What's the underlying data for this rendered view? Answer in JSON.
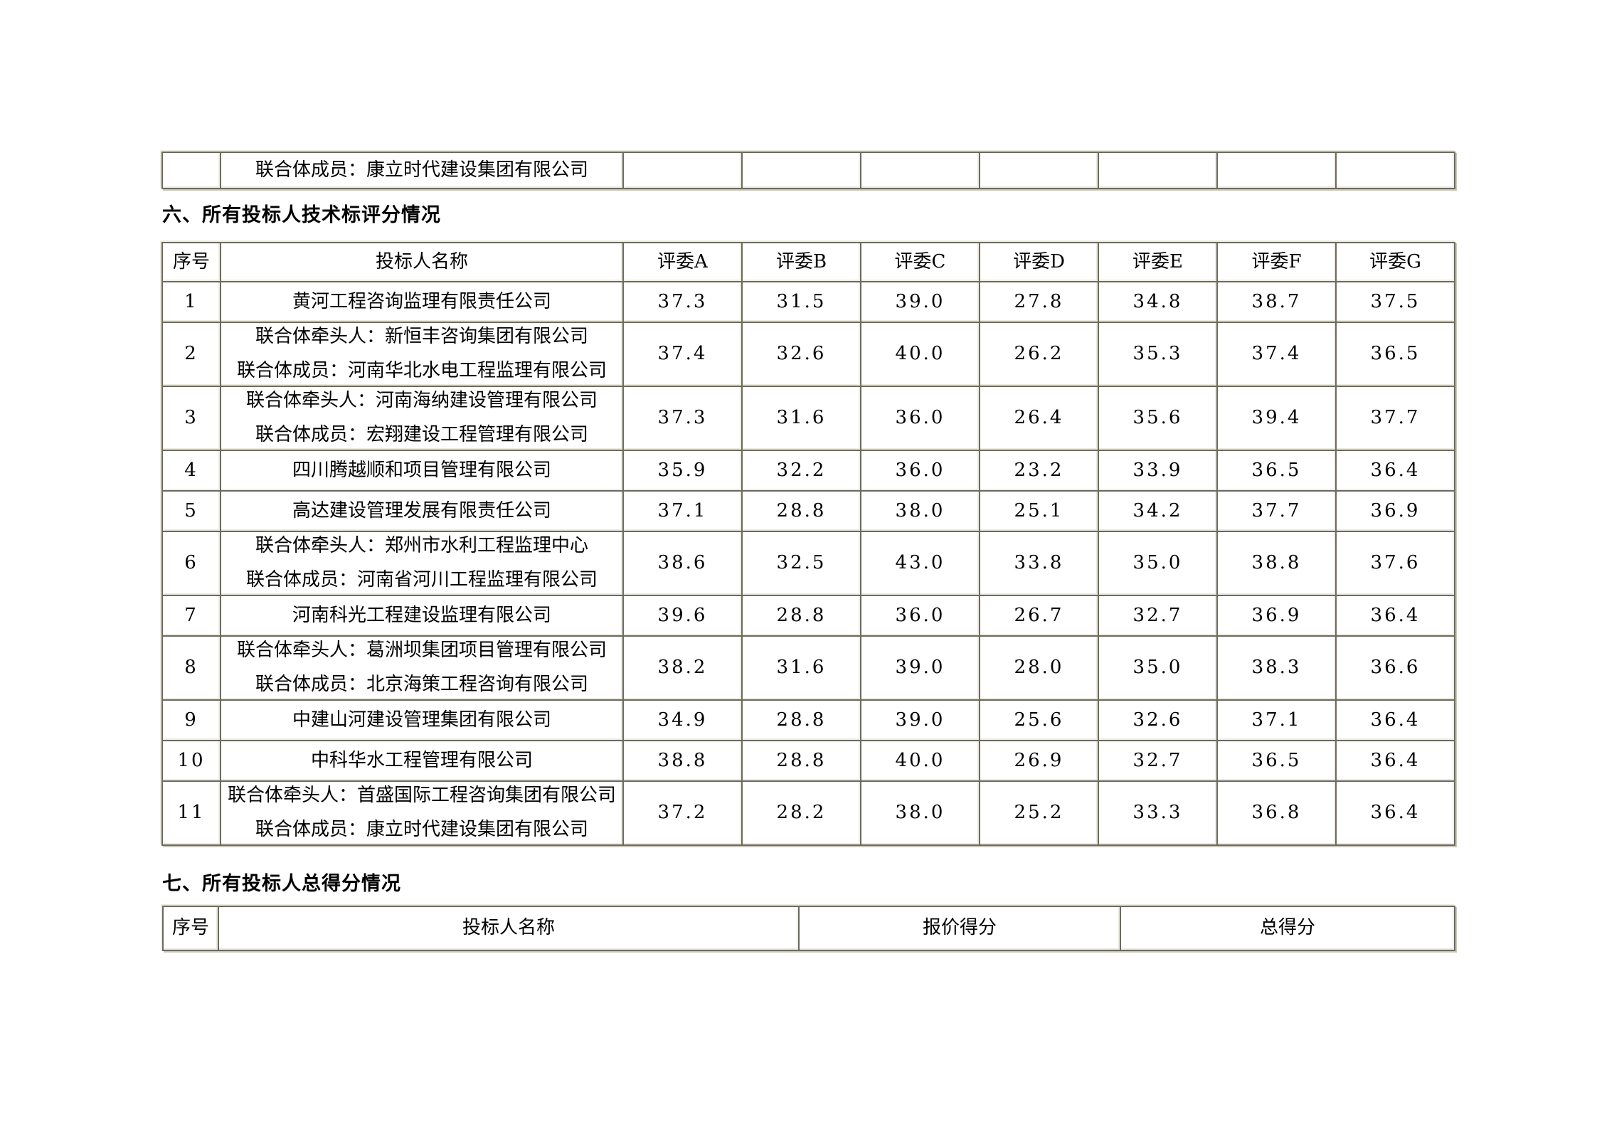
{
  "colors": {
    "background": "#ffffff",
    "text": "#000000",
    "table_border": "#6b6a61",
    "table_border_highlight": "#edecdf"
  },
  "document": {
    "fragment_table": {
      "member_text": "联合体成员：康立时代建设集团有限公司"
    },
    "section_tech": {
      "heading": "六、所有投标人技术标评分情况",
      "table": {
        "headers": [
          "序号",
          "投标人名称",
          "评委A",
          "评委B",
          "评委C",
          "评委D",
          "评委E",
          "评委F",
          "评委G"
        ],
        "rows": [
          {
            "no": "1",
            "name_lines": [
              "黄河工程咨询监理有限责任公司"
            ],
            "scores": [
              "37.3",
              "31.5",
              "39.0",
              "27.8",
              "34.8",
              "38.7",
              "37.5"
            ]
          },
          {
            "no": "2",
            "name_lines": [
              "联合体牵头人：新恒丰咨询集团有限公司",
              "联合体成员：河南华北水电工程监理有限公司"
            ],
            "scores": [
              "37.4",
              "32.6",
              "40.0",
              "26.2",
              "35.3",
              "37.4",
              "36.5"
            ]
          },
          {
            "no": "3",
            "name_lines": [
              "联合体牵头人：河南海纳建设管理有限公司",
              "联合体成员：宏翔建设工程管理有限公司"
            ],
            "scores": [
              "37.3",
              "31.6",
              "36.0",
              "26.4",
              "35.6",
              "39.4",
              "37.7"
            ]
          },
          {
            "no": "4",
            "name_lines": [
              "四川腾越顺和项目管理有限公司"
            ],
            "scores": [
              "35.9",
              "32.2",
              "36.0",
              "23.2",
              "33.9",
              "36.5",
              "36.4"
            ]
          },
          {
            "no": "5",
            "name_lines": [
              "高达建设管理发展有限责任公司"
            ],
            "scores": [
              "37.1",
              "28.8",
              "38.0",
              "25.1",
              "34.2",
              "37.7",
              "36.9"
            ]
          },
          {
            "no": "6",
            "name_lines": [
              "联合体牵头人：郑州市水利工程监理中心",
              "联合体成员：河南省河川工程监理有限公司"
            ],
            "scores": [
              "38.6",
              "32.5",
              "43.0",
              "33.8",
              "35.0",
              "38.8",
              "37.6"
            ]
          },
          {
            "no": "7",
            "name_lines": [
              "河南科光工程建设监理有限公司"
            ],
            "scores": [
              "39.6",
              "28.8",
              "36.0",
              "26.7",
              "32.7",
              "36.9",
              "36.4"
            ]
          },
          {
            "no": "8",
            "name_lines": [
              "联合体牵头人：葛洲坝集团项目管理有限公司",
              "联合体成员：北京海策工程咨询有限公司"
            ],
            "scores": [
              "38.2",
              "31.6",
              "39.0",
              "28.0",
              "35.0",
              "38.3",
              "36.6"
            ]
          },
          {
            "no": "9",
            "name_lines": [
              "中建山河建设管理集团有限公司"
            ],
            "scores": [
              "34.9",
              "28.8",
              "39.0",
              "25.6",
              "32.6",
              "37.1",
              "36.4"
            ]
          },
          {
            "no": "10",
            "name_lines": [
              "中科华水工程管理有限公司"
            ],
            "scores": [
              "38.8",
              "28.8",
              "40.0",
              "26.9",
              "32.7",
              "36.5",
              "36.4"
            ]
          },
          {
            "no": "11",
            "name_lines": [
              "联合体牵头人：首盛国际工程咨询集团有限公司",
              "联合体成员：康立时代建设集团有限公司"
            ],
            "scores": [
              "37.2",
              "28.2",
              "38.0",
              "25.2",
              "33.3",
              "36.8",
              "36.4"
            ]
          }
        ]
      }
    },
    "section_total": {
      "heading": "七、所有投标人总得分情况",
      "table": {
        "headers": [
          "序号",
          "投标人名称",
          "报价得分",
          "总得分"
        ]
      }
    }
  }
}
